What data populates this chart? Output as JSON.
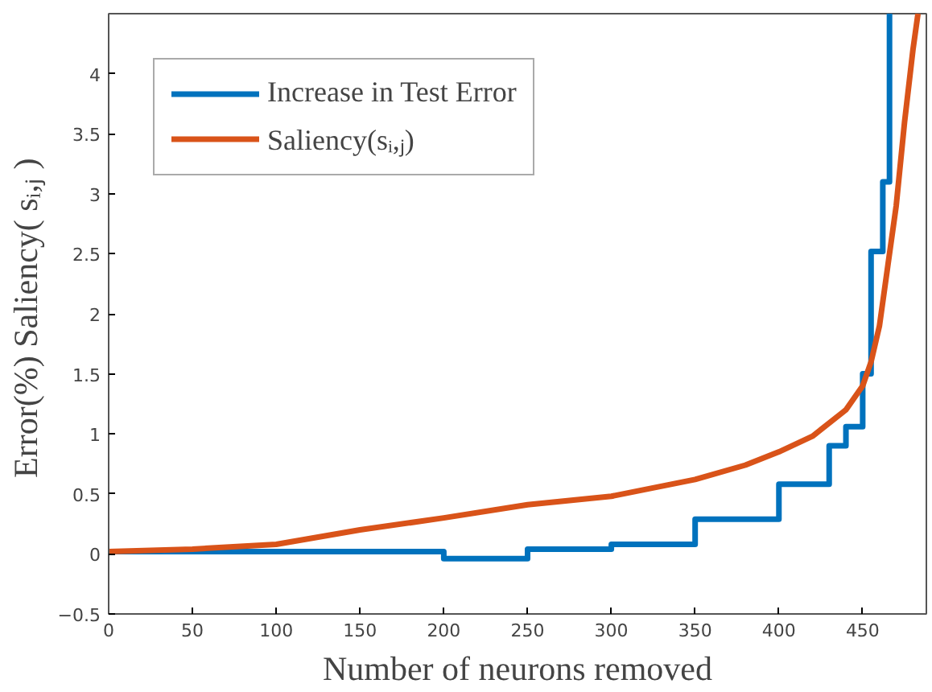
{
  "chart_data": {
    "type": "line",
    "xlabel": "Number of neurons removed",
    "ylabel": "Error(%)  Saliency( sᵢ,ⱼ )",
    "xlim": [
      0,
      488
    ],
    "ylim": [
      -0.5,
      4.5
    ],
    "xticks": [
      0,
      50,
      100,
      150,
      200,
      250,
      300,
      350,
      400,
      450
    ],
    "yticks": [
      -0.5,
      0,
      0.5,
      1,
      1.5,
      2,
      2.5,
      3,
      3.5,
      4
    ],
    "grid": false,
    "legend": "top left",
    "series": [
      {
        "name": "Increase in Test Error",
        "type": "step",
        "color": "#0072bd",
        "x": [
          0,
          200,
          250,
          300,
          350,
          400,
          430,
          440,
          450,
          455,
          462,
          466
        ],
        "values": [
          0.02,
          -0.04,
          0.04,
          0.08,
          0.29,
          0.58,
          0.9,
          1.06,
          1.5,
          2.52,
          3.1,
          4.5
        ]
      },
      {
        "name": "Saliency(sᵢ,ⱼ)",
        "color": "#d95319",
        "x": [
          0,
          50,
          100,
          150,
          200,
          250,
          300,
          350,
          380,
          400,
          420,
          440,
          450,
          455,
          460,
          465,
          470,
          475,
          480,
          483
        ],
        "values": [
          0.02,
          0.04,
          0.08,
          0.2,
          0.3,
          0.41,
          0.48,
          0.62,
          0.74,
          0.85,
          0.98,
          1.2,
          1.4,
          1.6,
          1.9,
          2.4,
          2.9,
          3.6,
          4.2,
          4.5
        ]
      }
    ]
  }
}
